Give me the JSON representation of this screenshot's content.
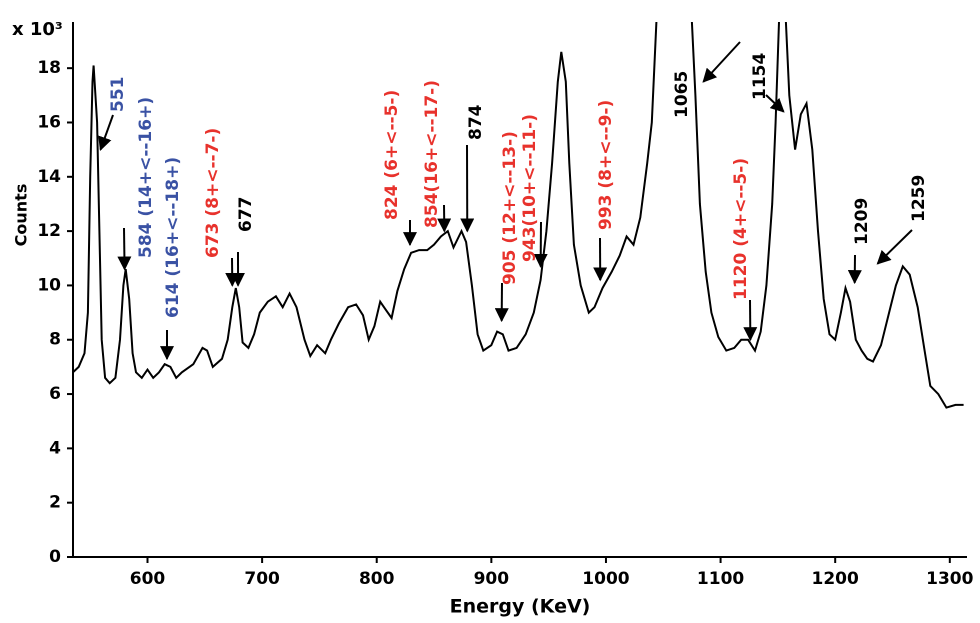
{
  "chart_data": {
    "type": "line",
    "y_multiplier": "x 10³",
    "xlabel": "Energy (KeV)",
    "ylabel": "Counts",
    "color": "#000000",
    "xlim": [
      535,
      1315
    ],
    "ylim": [
      0,
      19.7
    ],
    "xticks": [
      600,
      700,
      800,
      900,
      1000,
      1100,
      1200,
      1300
    ],
    "yticks": [
      0,
      2,
      4,
      6,
      8,
      10,
      12,
      14,
      16,
      18
    ],
    "x": [
      535,
      540,
      545,
      548,
      550,
      552,
      553,
      556,
      558,
      560,
      563,
      567,
      572,
      576,
      579,
      581,
      584,
      587,
      590,
      595,
      600,
      605,
      610,
      615,
      620,
      625,
      630,
      640,
      648,
      652,
      657,
      665,
      670,
      674,
      677,
      680,
      683,
      688,
      693,
      698,
      705,
      712,
      718,
      724,
      730,
      737,
      742,
      748,
      755,
      760,
      767,
      775,
      782,
      788,
      793,
      798,
      803,
      808,
      813,
      818,
      824,
      830,
      837,
      844,
      850,
      856,
      862,
      867,
      874,
      878,
      883,
      888,
      893,
      900,
      905,
      910,
      915,
      922,
      930,
      937,
      943,
      948,
      953,
      958,
      961,
      965,
      968,
      972,
      978,
      985,
      990,
      997,
      1005,
      1012,
      1018,
      1024,
      1030,
      1036,
      1040,
      1044,
      1060,
      1075,
      1078,
      1082,
      1087,
      1092,
      1098,
      1105,
      1112,
      1118,
      1124,
      1130,
      1135,
      1140,
      1145,
      1148,
      1151,
      1153,
      1157,
      1160,
      1165,
      1170,
      1175,
      1180,
      1185,
      1190,
      1195,
      1200,
      1205,
      1209,
      1213,
      1218,
      1223,
      1228,
      1233,
      1240,
      1247,
      1253,
      1259,
      1265,
      1272,
      1278,
      1283,
      1290,
      1297,
      1305,
      1312
    ],
    "values": [
      6.8,
      7.0,
      7.5,
      9,
      14,
      17.5,
      18.1,
      16,
      12,
      8,
      6.6,
      6.4,
      6.6,
      8,
      10,
      10.6,
      9.5,
      7.5,
      6.8,
      6.6,
      6.9,
      6.6,
      6.8,
      7.1,
      7.0,
      6.6,
      6.8,
      7.1,
      7.7,
      7.6,
      7.0,
      7.3,
      8,
      9.2,
      9.9,
      9.2,
      7.9,
      7.7,
      8.2,
      9.0,
      9.4,
      9.6,
      9.2,
      9.7,
      9.2,
      8.0,
      7.4,
      7.8,
      7.5,
      8.0,
      8.6,
      9.2,
      9.3,
      8.9,
      8.0,
      8.5,
      9.4,
      9.1,
      8.8,
      9.8,
      10.6,
      11.2,
      11.3,
      11.3,
      11.5,
      11.8,
      12.0,
      11.4,
      12.0,
      11.6,
      10.0,
      8.2,
      7.6,
      7.8,
      8.3,
      8.2,
      7.6,
      7.7,
      8.2,
      9.0,
      10.2,
      12.0,
      14.5,
      17.5,
      18.6,
      17.5,
      14.5,
      11.5,
      10.0,
      9.0,
      9.2,
      9.9,
      10.5,
      11.1,
      11.8,
      11.5,
      12.5,
      14.5,
      16.0,
      19.7,
      null,
      19.7,
      17,
      13,
      10.5,
      9.0,
      8.1,
      7.6,
      7.7,
      8.0,
      8.0,
      7.6,
      8.3,
      10,
      13,
      16,
      19.7,
      null,
      19.7,
      17,
      15.0,
      16.3,
      16.7,
      15,
      12,
      9.5,
      8.2,
      8.0,
      9.0,
      9.9,
      9.4,
      8.0,
      7.6,
      7.3,
      7.2,
      7.8,
      9.0,
      10.0,
      10.7,
      10.4,
      9.2,
      7.6,
      6.3,
      6.0,
      5.5,
      5.6,
      5.6
    ],
    "annotations": [
      {
        "text": "551",
        "color": "#3a52a4",
        "x": 559,
        "y": 15.0
      },
      {
        "text": "584 (14+<--16+)",
        "color": "#3a52a4",
        "x": 580,
        "y": 10.6
      },
      {
        "text": "614 (16+<--18+)",
        "color": "#3a52a4",
        "x": 617,
        "y": 7.3
      },
      {
        "text": "673 (8+<--7-)",
        "color": "#e8322c",
        "x": 674,
        "y": 10.0
      },
      {
        "text": "677",
        "color": "#000000",
        "x": 679,
        "y": 10.0
      },
      {
        "text": "824 (6+<--5-)",
        "color": "#e8322c",
        "x": 829,
        "y": 11.5
      },
      {
        "text": "854(16+<--17-)",
        "color": "#e8322c",
        "x": 859,
        "y": 12.0
      },
      {
        "text": "874",
        "color": "#000000",
        "x": 879,
        "y": 12.0
      },
      {
        "text": "905 (12+<--13-)",
        "color": "#e8322c",
        "x": 909,
        "y": 8.7
      },
      {
        "text": "943(10+<--11-)",
        "color": "#e8322c",
        "x": 943,
        "y": 10.7
      },
      {
        "text": "993 (8+<--9-)",
        "color": "#e8322c",
        "x": 995,
        "y": 10.2
      },
      {
        "text": "1065",
        "color": "#000000",
        "x": 1085,
        "y": 17.5
      },
      {
        "text": "1154",
        "color": "#000000",
        "x": 1155,
        "y": 16.4
      },
      {
        "text": "1120 (4+<--5-)",
        "color": "#e8322c",
        "x": 1126,
        "y": 8.0
      },
      {
        "text": "1209",
        "color": "#000000",
        "x": 1217,
        "y": 10.1
      },
      {
        "text": "1259",
        "color": "#000000",
        "x": 1237,
        "y": 10.8
      }
    ]
  }
}
